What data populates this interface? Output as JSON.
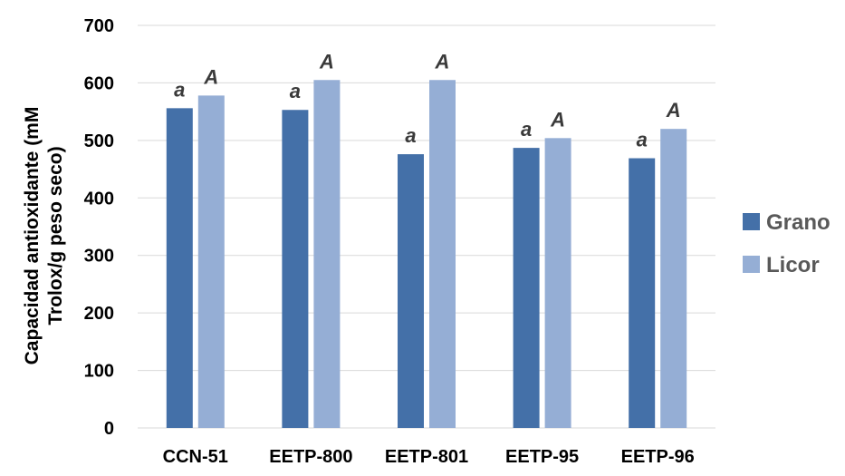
{
  "chart_data": {
    "type": "bar",
    "title": "",
    "xlabel": "",
    "ylabel_lines": [
      "Capacidad antioxidante (mM",
      "Trolox/g peso seco)"
    ],
    "categories": [
      "CCN-51",
      "EETP-800",
      "EETP-801",
      "EETP-95",
      "EETP-96"
    ],
    "series": [
      {
        "name": "Grano",
        "color": "#4470a8",
        "values": [
          556,
          553,
          476,
          487,
          469
        ],
        "labels": [
          "a",
          "a",
          "a",
          "a",
          "a"
        ]
      },
      {
        "name": "Licor",
        "color": "#95aed5",
        "values": [
          578,
          605,
          605,
          504,
          520
        ],
        "labels": [
          "A",
          "A",
          "A",
          "A",
          "A"
        ]
      }
    ],
    "ylim": [
      0,
      700
    ],
    "yticks": [
      0,
      100,
      200,
      300,
      400,
      500,
      600,
      700
    ],
    "grid": true,
    "gridline_color": "#d9d9d9",
    "legend_position": "right"
  }
}
